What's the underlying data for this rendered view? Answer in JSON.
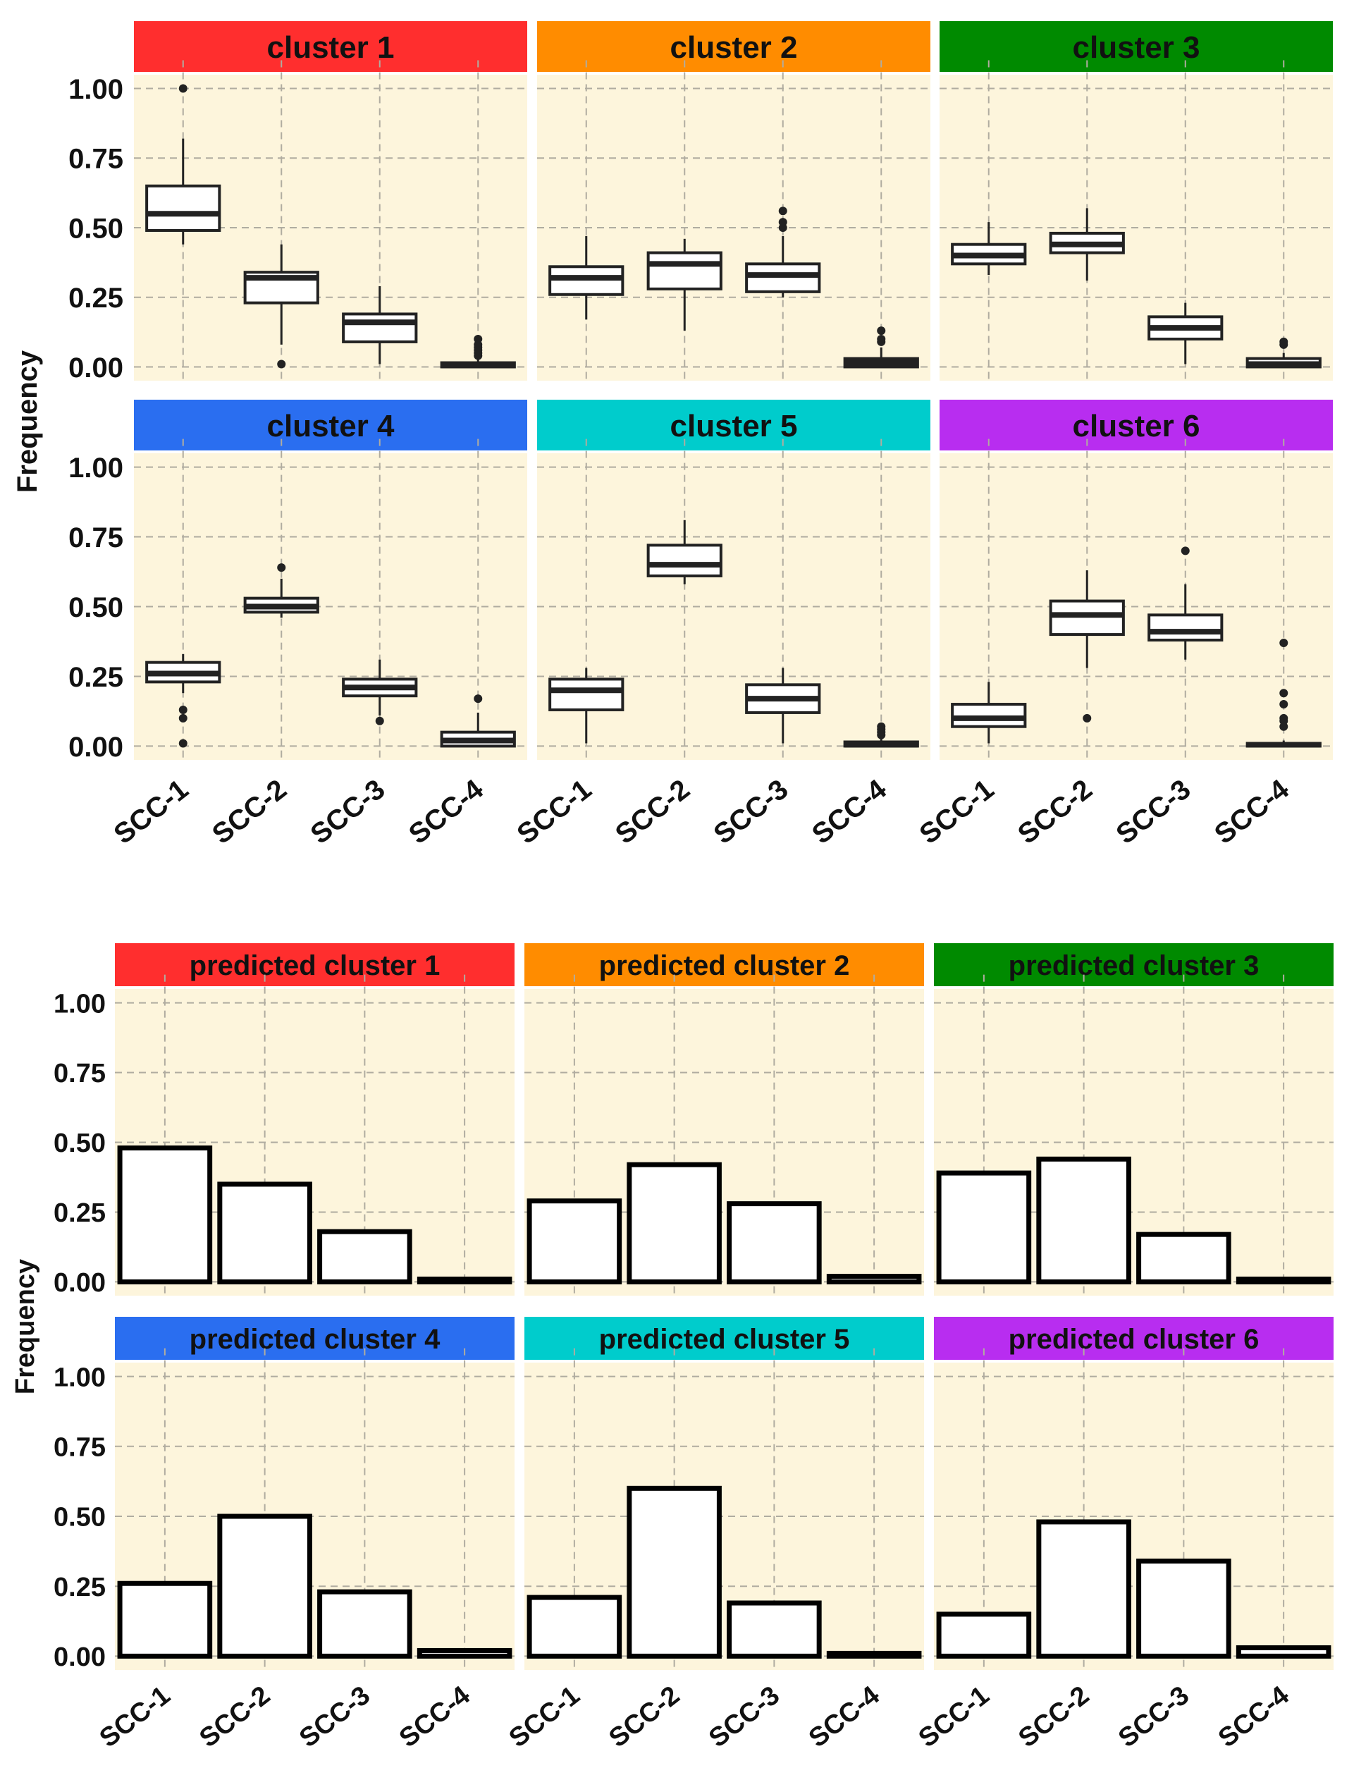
{
  "colors": {
    "panel_bg": "#fdf5dc",
    "grid": "#b0aca0",
    "box_stroke": "#222222",
    "bar_stroke": "#000000",
    "strip": [
      "#ff2e2e",
      "#ff8c00",
      "#008a00",
      "#2a6ef0",
      "#00cccc",
      "#b82df0"
    ]
  },
  "chart_data": [
    {
      "type": "boxplot",
      "ylabel": "Frequency",
      "ylim": [
        0,
        1
      ],
      "yticks": [
        0,
        0.25,
        0.5,
        0.75,
        1.0
      ],
      "ytick_labels": [
        "0.00",
        "0.25",
        "0.50",
        "0.75",
        "1.00"
      ],
      "categories": [
        "SCC-1",
        "SCC-2",
        "SCC-3",
        "SCC-4"
      ],
      "grid": true,
      "facets": [
        {
          "title": "cluster 1",
          "boxes": [
            {
              "min": 0.44,
              "q1": 0.49,
              "median": 0.55,
              "q3": 0.65,
              "max": 0.82,
              "outliers": [
                1.0
              ]
            },
            {
              "min": 0.08,
              "q1": 0.23,
              "median": 0.32,
              "q3": 0.34,
              "max": 0.44,
              "outliers": [
                0.01
              ]
            },
            {
              "min": 0.01,
              "q1": 0.09,
              "median": 0.16,
              "q3": 0.19,
              "max": 0.29,
              "outliers": []
            },
            {
              "min": 0.0,
              "q1": 0.0,
              "median": 0.005,
              "q3": 0.015,
              "max": 0.03,
              "outliers": [
                0.04,
                0.05,
                0.06,
                0.07,
                0.08,
                0.1
              ]
            }
          ]
        },
        {
          "title": "cluster 2",
          "boxes": [
            {
              "min": 0.17,
              "q1": 0.26,
              "median": 0.32,
              "q3": 0.36,
              "max": 0.47,
              "outliers": []
            },
            {
              "min": 0.13,
              "q1": 0.28,
              "median": 0.37,
              "q3": 0.41,
              "max": 0.46,
              "outliers": []
            },
            {
              "min": 0.25,
              "q1": 0.27,
              "median": 0.33,
              "q3": 0.37,
              "max": 0.47,
              "outliers": [
                0.5,
                0.52,
                0.56
              ]
            },
            {
              "min": 0.0,
              "q1": 0.0,
              "median": 0.015,
              "q3": 0.03,
              "max": 0.07,
              "outliers": [
                0.09,
                0.1,
                0.13
              ]
            }
          ]
        },
        {
          "title": "cluster 3",
          "boxes": [
            {
              "min": 0.33,
              "q1": 0.37,
              "median": 0.4,
              "q3": 0.44,
              "max": 0.52,
              "outliers": []
            },
            {
              "min": 0.31,
              "q1": 0.41,
              "median": 0.44,
              "q3": 0.48,
              "max": 0.57,
              "outliers": []
            },
            {
              "min": 0.01,
              "q1": 0.1,
              "median": 0.14,
              "q3": 0.18,
              "max": 0.23,
              "outliers": []
            },
            {
              "min": 0.0,
              "q1": 0.0,
              "median": 0.01,
              "q3": 0.03,
              "max": 0.05,
              "outliers": [
                0.08,
                0.09
              ]
            }
          ]
        },
        {
          "title": "cluster 4",
          "boxes": [
            {
              "min": 0.19,
              "q1": 0.23,
              "median": 0.26,
              "q3": 0.3,
              "max": 0.33,
              "outliers": [
                0.13,
                0.1,
                0.01
              ]
            },
            {
              "min": 0.46,
              "q1": 0.48,
              "median": 0.5,
              "q3": 0.53,
              "max": 0.6,
              "outliers": [
                0.64
              ]
            },
            {
              "min": 0.11,
              "q1": 0.18,
              "median": 0.21,
              "q3": 0.24,
              "max": 0.31,
              "outliers": [
                0.09
              ]
            },
            {
              "min": 0.0,
              "q1": 0.0,
              "median": 0.02,
              "q3": 0.05,
              "max": 0.12,
              "outliers": [
                0.17
              ]
            }
          ]
        },
        {
          "title": "cluster 5",
          "boxes": [
            {
              "min": 0.01,
              "q1": 0.13,
              "median": 0.2,
              "q3": 0.24,
              "max": 0.28,
              "outliers": []
            },
            {
              "min": 0.58,
              "q1": 0.61,
              "median": 0.65,
              "q3": 0.72,
              "max": 0.81,
              "outliers": []
            },
            {
              "min": 0.01,
              "q1": 0.12,
              "median": 0.17,
              "q3": 0.22,
              "max": 0.28,
              "outliers": []
            },
            {
              "min": 0.0,
              "q1": 0.0,
              "median": 0.005,
              "q3": 0.015,
              "max": 0.03,
              "outliers": [
                0.04,
                0.05,
                0.06,
                0.07
              ]
            }
          ]
        },
        {
          "title": "cluster 6",
          "boxes": [
            {
              "min": 0.01,
              "q1": 0.07,
              "median": 0.1,
              "q3": 0.15,
              "max": 0.23,
              "outliers": []
            },
            {
              "min": 0.28,
              "q1": 0.4,
              "median": 0.47,
              "q3": 0.52,
              "max": 0.63,
              "outliers": [
                0.1
              ]
            },
            {
              "min": 0.31,
              "q1": 0.38,
              "median": 0.41,
              "q3": 0.47,
              "max": 0.58,
              "outliers": [
                0.7
              ]
            },
            {
              "min": 0.0,
              "q1": 0.0,
              "median": 0.005,
              "q3": 0.01,
              "max": 0.02,
              "outliers": [
                0.07,
                0.09,
                0.1,
                0.15,
                0.19,
                0.37
              ]
            }
          ]
        }
      ]
    },
    {
      "type": "bar",
      "ylabel": "Frequency",
      "ylim": [
        0,
        1
      ],
      "yticks": [
        0,
        0.25,
        0.5,
        0.75,
        1.0
      ],
      "ytick_labels": [
        "0.00",
        "0.25",
        "0.50",
        "0.75",
        "1.00"
      ],
      "categories": [
        "SCC-1",
        "SCC-2",
        "SCC-3",
        "SCC-4"
      ],
      "grid": true,
      "facets": [
        {
          "title": "predicted cluster 1",
          "values": [
            0.48,
            0.35,
            0.18,
            0.01
          ]
        },
        {
          "title": "predicted cluster 2",
          "values": [
            0.29,
            0.42,
            0.28,
            0.02
          ]
        },
        {
          "title": "predicted cluster 3",
          "values": [
            0.39,
            0.44,
            0.17,
            0.01
          ]
        },
        {
          "title": "predicted cluster 4",
          "values": [
            0.26,
            0.5,
            0.23,
            0.02
          ]
        },
        {
          "title": "predicted cluster 5",
          "values": [
            0.21,
            0.6,
            0.19,
            0.01
          ]
        },
        {
          "title": "predicted cluster 6",
          "values": [
            0.15,
            0.48,
            0.34,
            0.03
          ]
        }
      ]
    }
  ]
}
